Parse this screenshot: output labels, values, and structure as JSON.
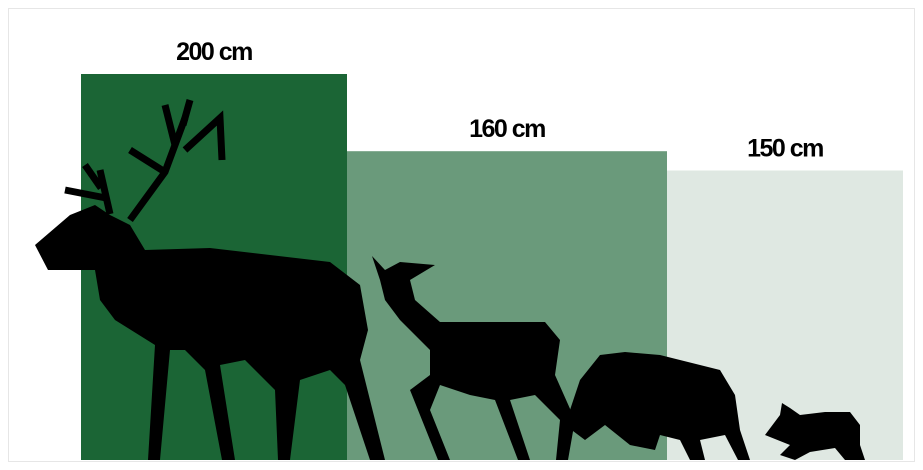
{
  "chart_data": {
    "type": "bar",
    "values": [
      200,
      160,
      150
    ],
    "value_labels": [
      "200 cm",
      "160 cm",
      "150 cm"
    ],
    "colors": [
      "#1b6535",
      "#6a9a7b",
      "#dfe8e2"
    ],
    "ylim": [
      0,
      200
    ]
  }
}
